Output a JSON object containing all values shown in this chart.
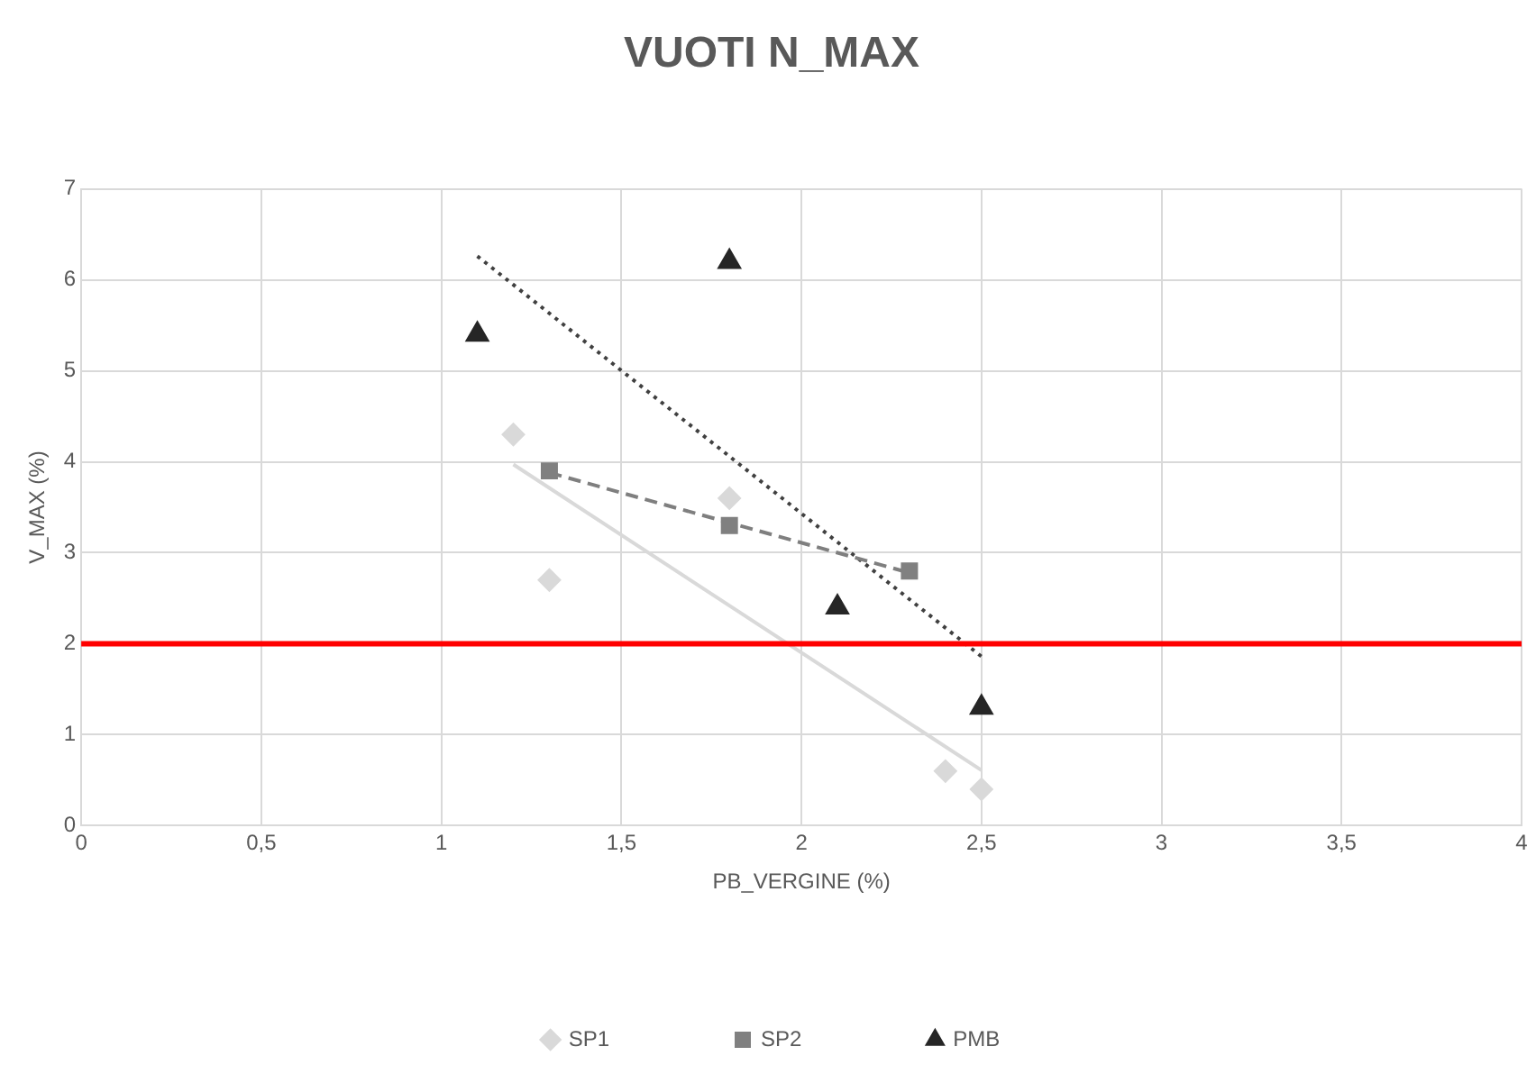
{
  "chart_data": {
    "type": "scatter",
    "title": "VUOTI N_MAX",
    "xlabel": "PB_VERGINE (%)",
    "ylabel": "V_MAX (%)",
    "xlim": [
      0,
      4
    ],
    "xticks": [
      0,
      {
        "value": 0.5,
        "label": "0,5"
      },
      1,
      {
        "value": 1.5,
        "label": "1,5"
      },
      2,
      {
        "value": 2.5,
        "label": "2,5"
      },
      3,
      {
        "value": 3.5,
        "label": "3,5"
      },
      4
    ],
    "ylim": [
      0,
      7
    ],
    "yticks": [
      0,
      1,
      2,
      3,
      4,
      5,
      6,
      7
    ],
    "grid": true,
    "legend": "bottom",
    "ref_lines": [
      {
        "axis": "y",
        "value": 2,
        "color": "#ff0000"
      }
    ],
    "series": [
      {
        "name": "SP1",
        "type": "scatter",
        "marker": "diamond",
        "color": "#d9d9d9",
        "x": [
          1.2,
          1.3,
          1.8,
          2.4,
          2.5
        ],
        "values": [
          4.3,
          2.7,
          3.6,
          0.6,
          0.4
        ]
      },
      {
        "name": "SP2",
        "type": "scatter",
        "marker": "square",
        "color": "#808080",
        "x": [
          1.3,
          1.8,
          2.3
        ],
        "values": [
          3.9,
          3.3,
          2.8
        ]
      },
      {
        "name": "PMB",
        "type": "scatter",
        "marker": "triangle",
        "color": "#262626",
        "x": [
          1.1,
          1.8,
          2.1,
          2.5
        ],
        "values": [
          5.4,
          6.2,
          2.4,
          1.3
        ]
      },
      {
        "type": "line",
        "marker": "none",
        "line_style": "solid",
        "color": "#d9d9d9",
        "x": [
          1.2,
          2.5
        ],
        "values": [
          3.97,
          0.61
        ]
      },
      {
        "type": "line",
        "marker": "none",
        "line_style": "dashed",
        "color": "#7f7f7f",
        "x": [
          1.3,
          2.3
        ],
        "values": [
          3.88,
          2.78
        ]
      },
      {
        "type": "line",
        "marker": "none",
        "line_style": "dotted",
        "color": "#404040",
        "x": [
          1.1,
          2.5
        ],
        "values": [
          6.26,
          1.86
        ]
      }
    ]
  }
}
